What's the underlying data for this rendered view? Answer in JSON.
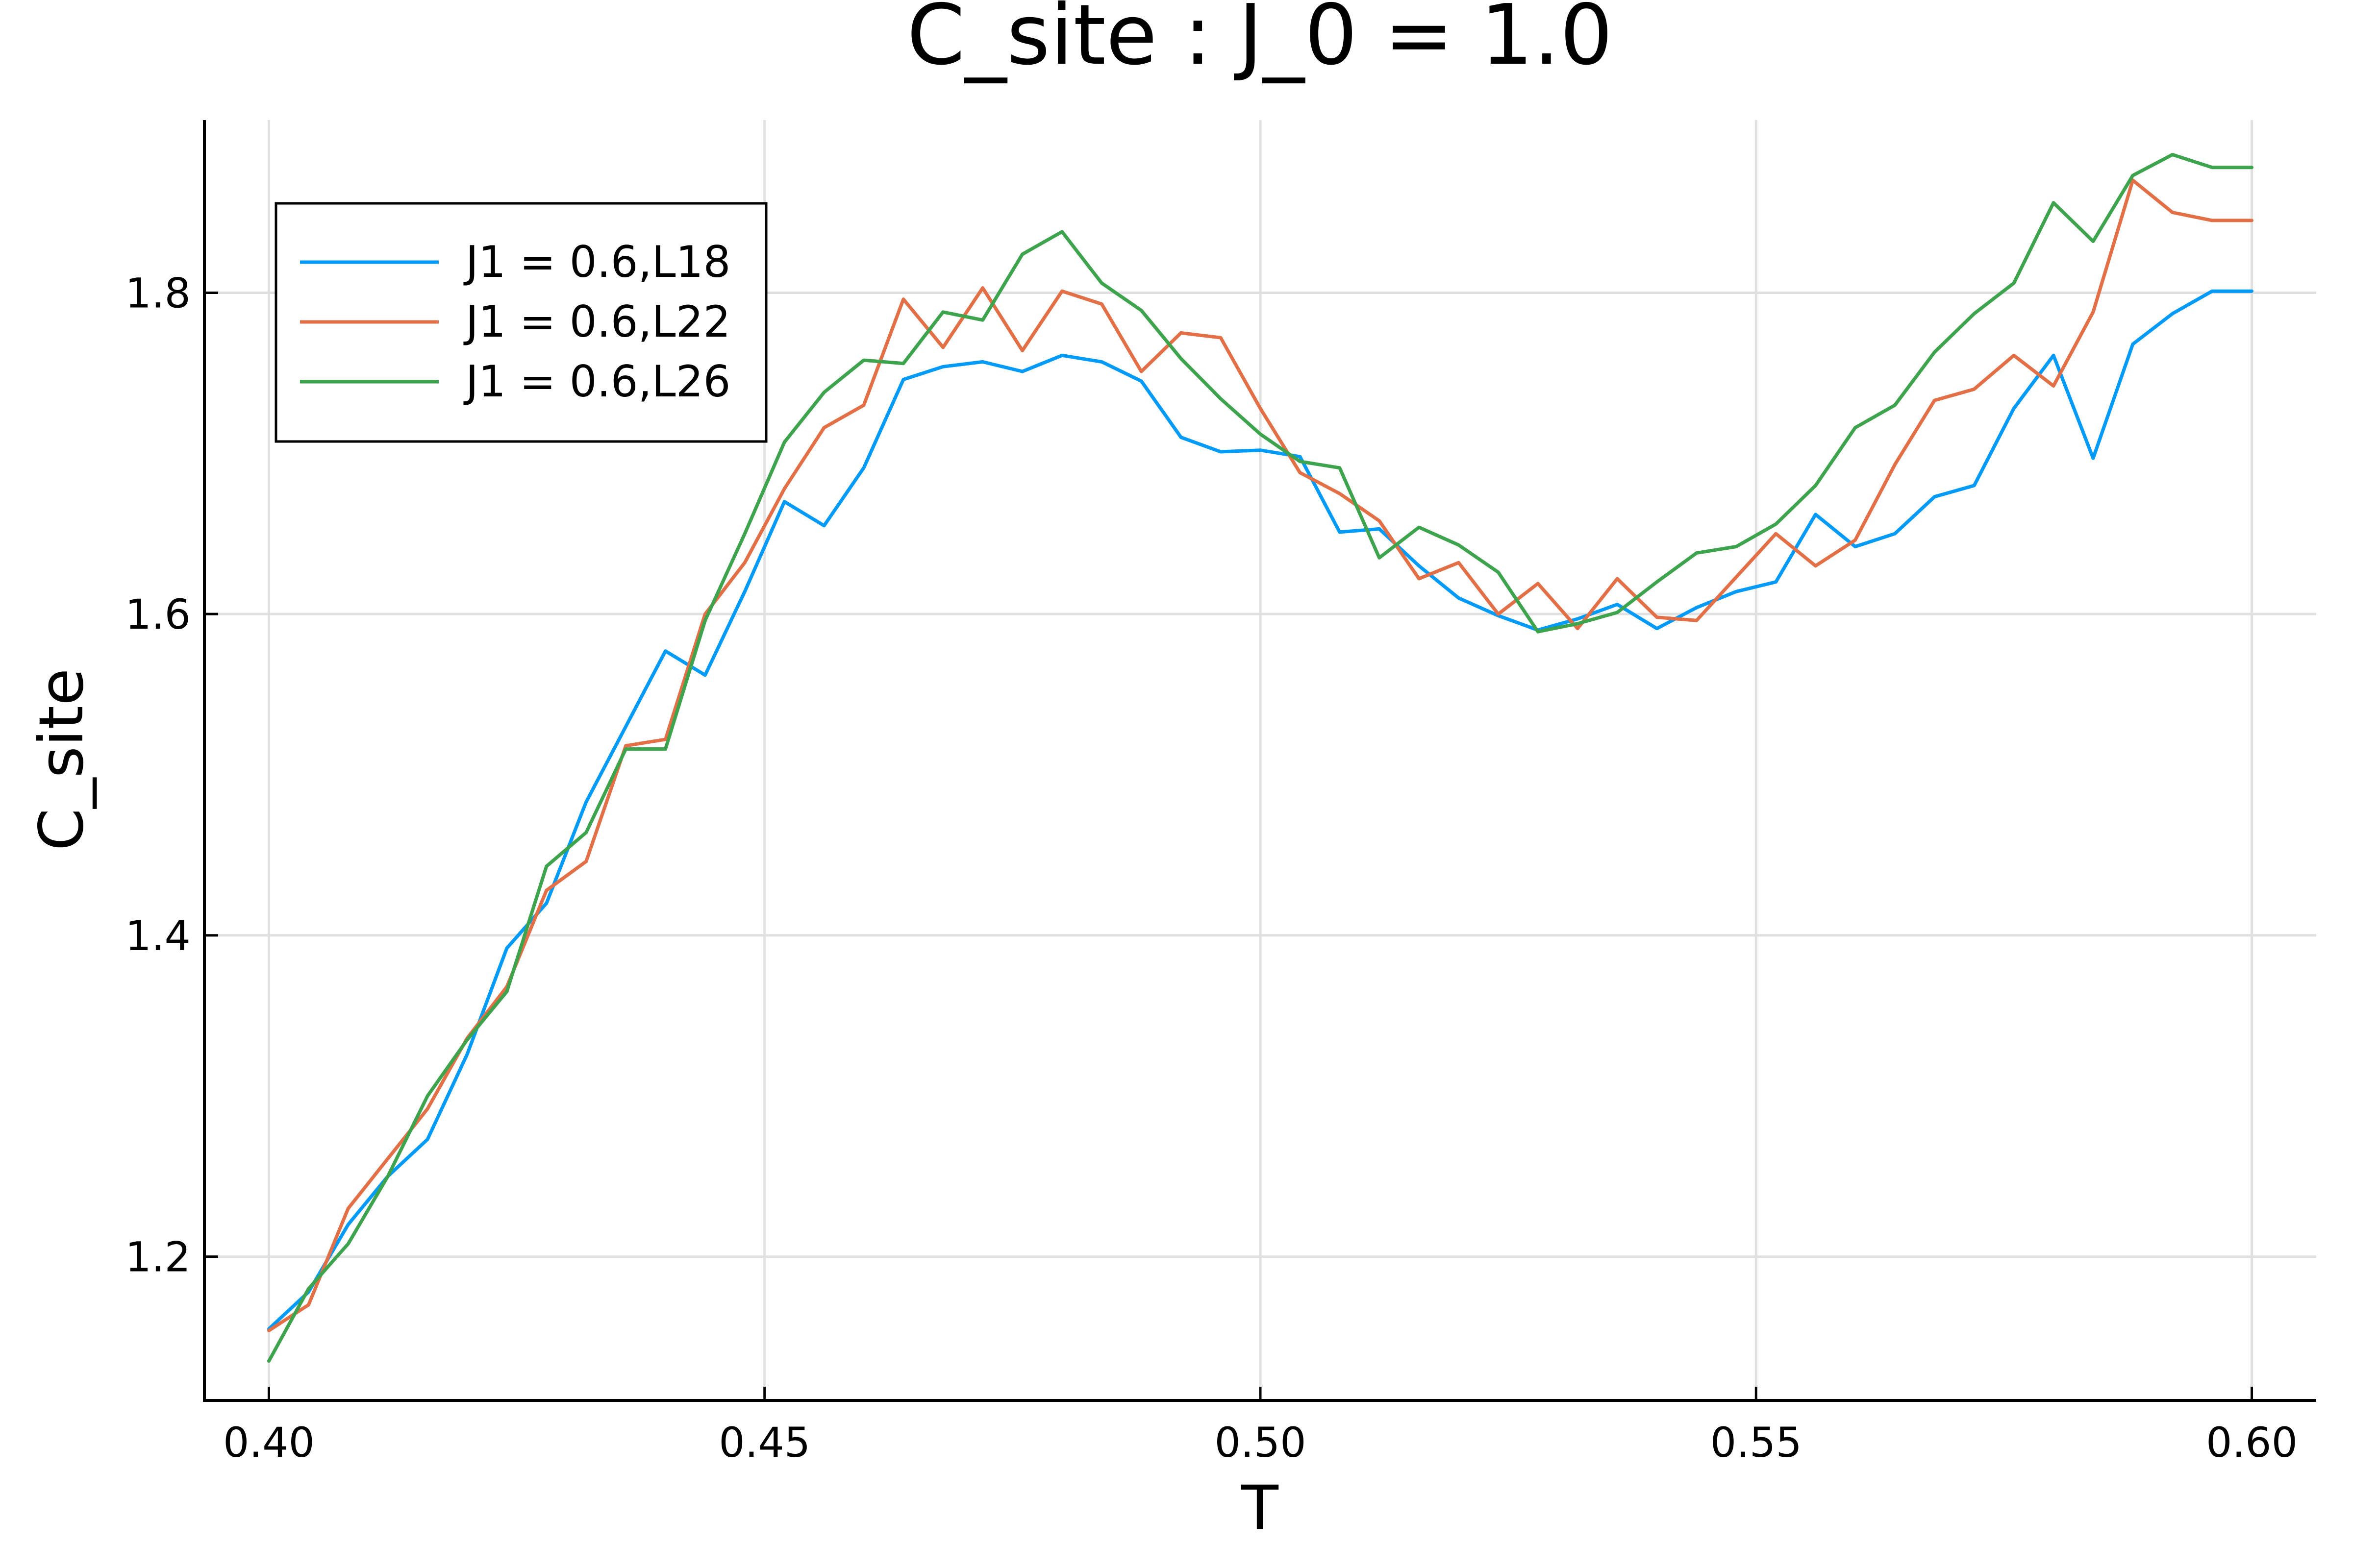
{
  "chart_data": {
    "type": "line",
    "title": "C_site : J_0 = 1.0",
    "xlabel": "T",
    "ylabel": "C_site",
    "xlim": [
      0.3935,
      0.6065
    ],
    "ylim": [
      1.1105,
      1.9075
    ],
    "xticks": [
      0.4,
      0.45,
      0.5,
      0.55,
      0.6
    ],
    "xtick_labels": [
      "0.40",
      "0.45",
      "0.50",
      "0.55",
      "0.60"
    ],
    "yticks": [
      1.2,
      1.4,
      1.6,
      1.8
    ],
    "ytick_labels": [
      "1.2",
      "1.4",
      "1.6",
      "1.8"
    ],
    "grid": true,
    "legend_position": "top-left",
    "x": [
      0.4,
      0.404,
      0.408,
      0.412,
      0.416,
      0.42,
      0.424,
      0.428,
      0.432,
      0.436,
      0.44,
      0.444,
      0.448,
      0.452,
      0.456,
      0.46,
      0.464,
      0.468,
      0.472,
      0.476,
      0.48,
      0.484,
      0.488,
      0.492,
      0.496,
      0.5,
      0.504,
      0.508,
      0.512,
      0.516,
      0.52,
      0.524,
      0.528,
      0.532,
      0.536,
      0.54,
      0.544,
      0.548,
      0.552,
      0.556,
      0.56,
      0.564,
      0.568,
      0.572,
      0.576,
      0.58,
      0.584,
      0.588,
      0.592,
      0.596,
      0.6
    ],
    "series": [
      {
        "name": "J1 = 0.6,L18",
        "color": "#009af9",
        "values": [
          1.155,
          1.178,
          1.22,
          1.25,
          1.273,
          1.326,
          1.392,
          1.42,
          1.483,
          1.53,
          1.577,
          1.562,
          1.614,
          1.67,
          1.655,
          1.691,
          1.746,
          1.754,
          1.757,
          1.751,
          1.761,
          1.757,
          1.745,
          1.71,
          1.701,
          1.702,
          1.698,
          1.651,
          1.653,
          1.63,
          1.61,
          1.599,
          1.59,
          1.597,
          1.606,
          1.591,
          1.604,
          1.614,
          1.62,
          1.662,
          1.642,
          1.65,
          1.673,
          1.68,
          1.728,
          1.761,
          1.697,
          1.768,
          1.787,
          1.801,
          1.801
        ]
      },
      {
        "name": "J1 = 0.6,L22",
        "color": "#e26f46",
        "values": [
          1.154,
          1.17,
          1.23,
          1.261,
          1.292,
          1.336,
          1.368,
          1.428,
          1.446,
          1.518,
          1.522,
          1.6,
          1.632,
          1.678,
          1.716,
          1.73,
          1.796,
          1.766,
          1.803,
          1.764,
          1.801,
          1.793,
          1.751,
          1.775,
          1.772,
          1.728,
          1.688,
          1.675,
          1.658,
          1.622,
          1.632,
          1.6,
          1.619,
          1.591,
          1.622,
          1.598,
          1.596,
          1.623,
          1.65,
          1.63,
          1.646,
          1.693,
          1.733,
          1.74,
          1.761,
          1.742,
          1.788,
          1.87,
          1.85,
          1.845,
          1.845
        ]
      },
      {
        "name": "J1 = 0.6,L26",
        "color": "#3da44d",
        "values": [
          1.135,
          1.18,
          1.208,
          1.25,
          1.3,
          1.335,
          1.365,
          1.443,
          1.464,
          1.516,
          1.516,
          1.596,
          1.65,
          1.707,
          1.738,
          1.758,
          1.756,
          1.788,
          1.783,
          1.824,
          1.838,
          1.806,
          1.789,
          1.759,
          1.734,
          1.712,
          1.695,
          1.691,
          1.635,
          1.654,
          1.643,
          1.626,
          1.589,
          1.594,
          1.601,
          1.62,
          1.638,
          1.642,
          1.656,
          1.68,
          1.716,
          1.73,
          1.763,
          1.787,
          1.806,
          1.856,
          1.832,
          1.873,
          1.886,
          1.878,
          1.878
        ]
      }
    ]
  }
}
